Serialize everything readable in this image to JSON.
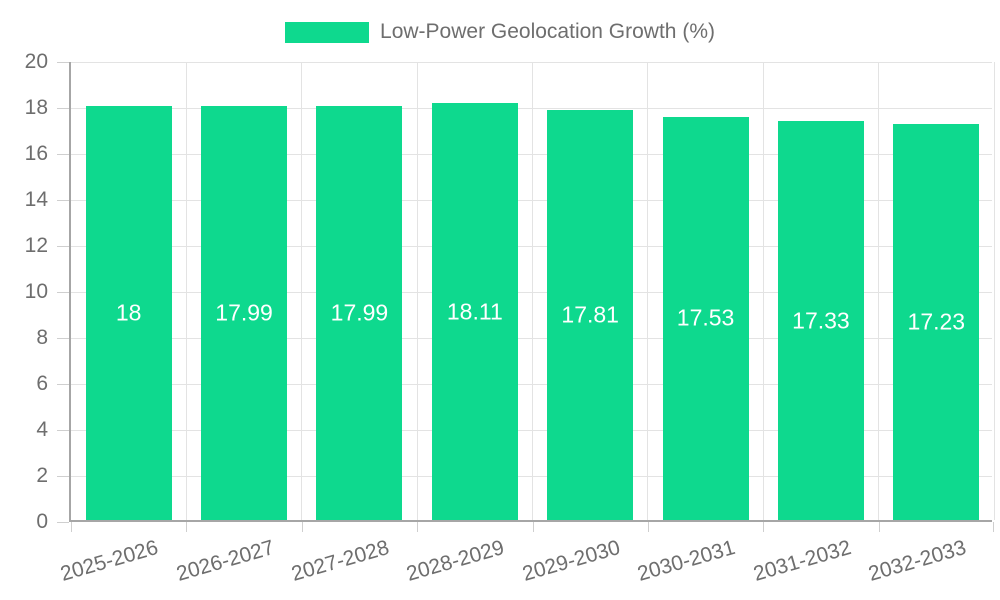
{
  "legend": {
    "label": "Low-Power Geolocation Growth (%)"
  },
  "chart_data": {
    "type": "bar",
    "title": "Low-Power Geolocation Growth (%)",
    "categories": [
      "2025-2026",
      "2026-2027",
      "2027-2028",
      "2028-2029",
      "2029-2030",
      "2030-2031",
      "2031-2032",
      "2032-2033"
    ],
    "values": [
      18,
      17.99,
      17.99,
      18.11,
      17.81,
      17.53,
      17.33,
      17.23
    ],
    "bar_labels": [
      "18",
      "17.99",
      "17.99",
      "18.11",
      "17.81",
      "17.53",
      "17.33",
      "17.23"
    ],
    "xlabel": "",
    "ylabel": "",
    "ylim": [
      0,
      20
    ],
    "yticks": [
      0,
      2,
      4,
      6,
      8,
      10,
      12,
      14,
      16,
      18,
      20
    ],
    "grid": true,
    "legend_position": "top",
    "colors": {
      "bar": "#0ed98e",
      "bar_label": "#ffffff",
      "axis_text": "#6e6e6e",
      "gridline": "#e3e3e3",
      "axis_line": "#a6a6a6"
    }
  }
}
